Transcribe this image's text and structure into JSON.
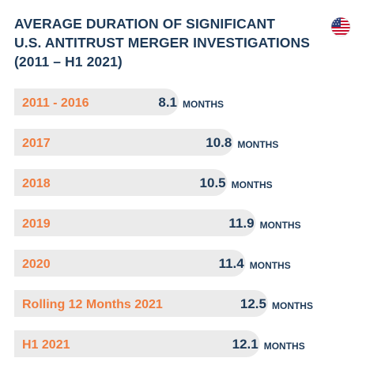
{
  "title": {
    "line1": "AVERAGE DURATION OF SIGNIFICANT",
    "line2": "U.S. ANTITRUST MERGER INVESTIGATIONS",
    "line3": "(2011 – H1 2021)"
  },
  "flag_icon": "us-flag-icon",
  "colors": {
    "title": "#1e3a58",
    "category": "#f07c3e",
    "value": "#1e3a58",
    "bar": "#ebebeb"
  },
  "chart_data": {
    "type": "bar",
    "orientation": "horizontal",
    "categories": [
      "2011 - 2016",
      "2017",
      "2018",
      "2019",
      "2020",
      "Rolling 12 Months 2021",
      "H1 2021"
    ],
    "values": [
      8.1,
      10.8,
      10.5,
      11.9,
      11.4,
      12.5,
      12.1
    ],
    "value_labels": [
      "8.1",
      "10.8",
      "10.5",
      "11.9",
      "11.4",
      "12.5",
      "12.1"
    ],
    "unit": "MONTHS",
    "title": "AVERAGE DURATION OF SIGNIFICANT U.S. ANTITRUST MERGER INVESTIGATIONS (2011 – H1 2021)",
    "grid": false,
    "legend": "none"
  }
}
